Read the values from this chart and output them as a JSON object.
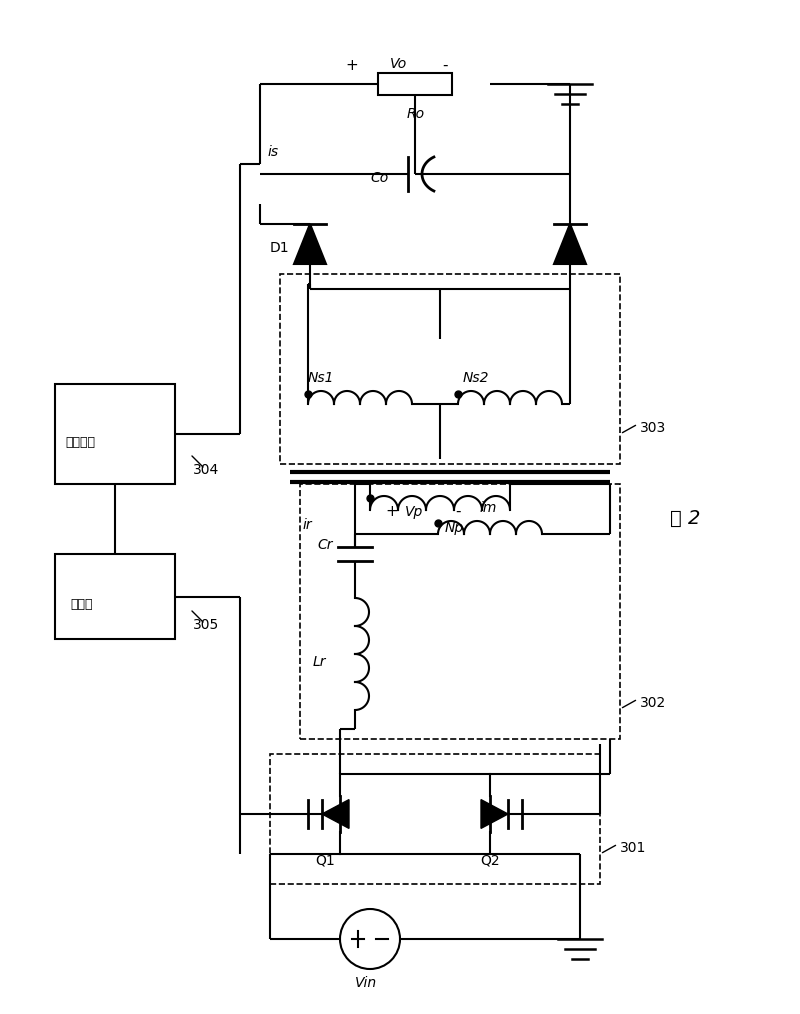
{
  "background": "#ffffff",
  "line_color": "#000000",
  "lw": 1.5,
  "fig_label": "图 2",
  "label_301": "301",
  "label_302": "302",
  "label_303": "303",
  "label_304": "304",
  "label_305": "305",
  "text_Q1": "Q1",
  "text_Q2": "Q2",
  "text_D1": "D1",
  "text_Ns1": "Ns1",
  "text_Ns2": "Ns2",
  "text_Np": "Np",
  "text_Cr": "Cr",
  "text_Lr": "Lr",
  "text_ir": "ir",
  "text_im": "im",
  "text_Vp": "Vp",
  "text_Co": "Co",
  "text_Ro": "Ro",
  "text_Vo": "Vo",
  "text_is": "is",
  "text_Vin": "Vin",
  "text_ctrl": "控制芯片",
  "text_driver": "驱动器"
}
